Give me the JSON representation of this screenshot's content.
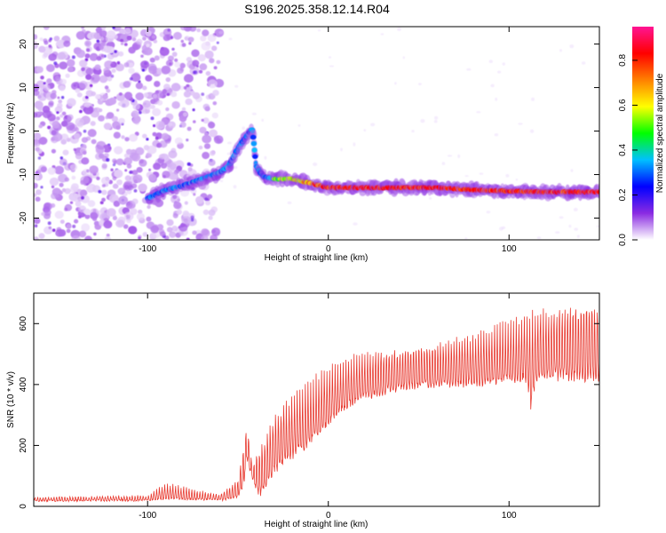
{
  "title": "S196.2025.358.12.14.R04",
  "chart_data": [
    {
      "type": "heatmap",
      "name": "spectrogram",
      "xlabel": "Height of straight line (km)",
      "ylabel": "Frequency (Hz)",
      "xlim": [
        -163,
        150
      ],
      "ylim": [
        -25,
        24
      ],
      "xticks": [
        -100,
        0,
        100
      ],
      "yticks": [
        -20,
        -10,
        0,
        10,
        20
      ],
      "noise_region_x": [
        -163,
        -60
      ],
      "ridge": {
        "x": [
          -100,
          -90,
          -80,
          -70,
          -60,
          -55,
          -50,
          -45,
          -42,
          -40,
          -36,
          -30,
          -20,
          -10,
          0,
          20,
          40,
          60,
          80,
          100,
          120,
          140,
          150
        ],
        "y": [
          -15.5,
          -13.5,
          -12.5,
          -11,
          -9.5,
          -8,
          -4,
          -1,
          0.5,
          -8,
          -10.5,
          -11,
          -11,
          -12,
          -13,
          -13,
          -13,
          -13,
          -13.5,
          -13.8,
          -14,
          -14,
          -14
        ]
      },
      "colorbar": {
        "label": "Normalized spectral amplitude",
        "ticks": [
          0.0,
          0.2,
          0.4,
          0.6,
          0.8
        ],
        "range": [
          0,
          0.95
        ],
        "colors": [
          "#ffffff",
          "#8a2be2",
          "#0000ff",
          "#00c0ff",
          "#00ff00",
          "#ffff00",
          "#ff8000",
          "#ff0000",
          "#ff1493"
        ]
      }
    },
    {
      "type": "line",
      "name": "snr",
      "xlabel": "Height of straight line (km)",
      "ylabel": "SNR (10 * v/v)",
      "xlim": [
        -163,
        150
      ],
      "ylim": [
        0,
        700
      ],
      "xticks": [
        -100,
        0,
        100
      ],
      "yticks": [
        0,
        200,
        400,
        600
      ],
      "color": "#e83a30",
      "series": [
        {
          "name": "SNR baseline",
          "x": [
            -163,
            -100,
            -90,
            -70,
            -60,
            -50,
            -47,
            -45,
            -43,
            -40,
            -38,
            -35,
            -30,
            -20,
            -10,
            0,
            10,
            20,
            40,
            60,
            80,
            100,
            110,
            112,
            115,
            120,
            140,
            150
          ],
          "y": [
            18,
            20,
            25,
            22,
            20,
            30,
            70,
            160,
            110,
            55,
            40,
            60,
            120,
            170,
            215,
            280,
            330,
            360,
            390,
            400,
            405,
            420,
            420,
            340,
            410,
            430,
            430,
            430
          ]
        },
        {
          "name": "SNR peak envelope",
          "x": [
            -163,
            -100,
            -90,
            -70,
            -60,
            -50,
            -45,
            -42,
            -40,
            -30,
            -20,
            -10,
            0,
            10,
            20,
            40,
            60,
            80,
            100,
            120,
            140,
            150
          ],
          "y": [
            30,
            35,
            75,
            50,
            40,
            90,
            280,
            130,
            170,
            300,
            360,
            410,
            450,
            490,
            500,
            520,
            540,
            560,
            600,
            650,
            680,
            660
          ]
        }
      ]
    }
  ]
}
